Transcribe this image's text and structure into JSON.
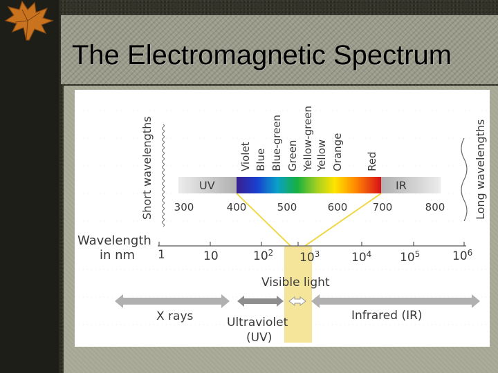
{
  "slide": {
    "title": "The Electromagnetic Spectrum"
  },
  "diagram": {
    "color_names": [
      "Violet",
      "Blue",
      "Blue-green",
      "Green",
      "Yellow-green",
      "Yellow",
      "Orange",
      "Red"
    ],
    "upper_scale": {
      "uv_label": "UV",
      "ir_label": "IR",
      "ticks": [
        "300",
        "400",
        "500",
        "600",
        "700",
        "800"
      ]
    },
    "short_label": "Short wavelengths",
    "long_label": "Long wavelengths",
    "axis_label_line1": "Wavelength",
    "axis_label_line2": "in nm",
    "lower_scale": [
      {
        "base": "1",
        "exp": ""
      },
      {
        "base": "10",
        "exp": ""
      },
      {
        "base": "10",
        "exp": "2"
      },
      {
        "base": "10",
        "exp": "3"
      },
      {
        "base": "10",
        "exp": "4"
      },
      {
        "base": "10",
        "exp": "5"
      },
      {
        "base": "10",
        "exp": "6"
      }
    ],
    "visible_label": "Visible light",
    "xray_label": "X rays",
    "uv_label_line1": "Ultraviolet",
    "uv_label_line2": "(UV)",
    "ir_label": "Infrared (IR)",
    "colors": {
      "background": "#ffffff",
      "text": "#3a3a3a",
      "arrow_gray": "#b0b0b0",
      "highlight": "#f4e59a"
    }
  }
}
